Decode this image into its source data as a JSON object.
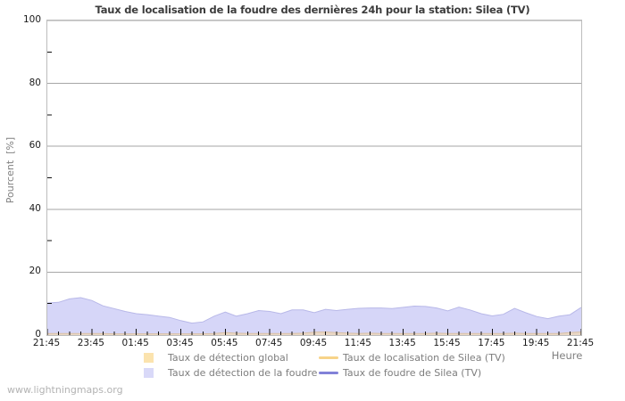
{
  "watermark": "www.lightningmaps.org",
  "chart_data": {
    "type": "area",
    "title": "Taux de localisation de la foudre des dernières 24h pour la station: Silea (TV)",
    "xlabel": "Heure",
    "ylabel": "Pourcent  [%]",
    "ylim": [
      0,
      100
    ],
    "y_major_ticks": [
      0,
      20,
      40,
      60,
      80,
      100
    ],
    "y_minor_ticks": [
      10,
      30,
      50,
      70,
      90
    ],
    "grid": "horizontal-major",
    "x_tick_labels": [
      "21:45",
      "23:45",
      "01:45",
      "03:45",
      "05:45",
      "07:45",
      "09:45",
      "11:45",
      "13:45",
      "15:45",
      "17:45",
      "19:45",
      "21:45"
    ],
    "x_minor_interval_minutes": 30,
    "x_major_interval_minutes": 120,
    "x_total_minutes": 1440,
    "sample_interval_minutes": 30,
    "series": [
      {
        "name": "Taux de détection de la foudre",
        "type": "area",
        "fill": "#d6d6f8",
        "edge": "#b8b8e8",
        "values": [
          10.2,
          10.4,
          11.5,
          11.9,
          11.0,
          9.3,
          8.4,
          7.5,
          6.8,
          6.5,
          6.0,
          5.6,
          4.6,
          3.8,
          4.2,
          6.0,
          7.3,
          6.0,
          6.8,
          7.8,
          7.5,
          6.8,
          8.0,
          8.0,
          7.1,
          8.2,
          7.8,
          8.2,
          8.5,
          8.6,
          8.6,
          8.4,
          8.8,
          9.2,
          9.1,
          8.6,
          7.7,
          8.9,
          8.0,
          6.8,
          6.1,
          6.6,
          8.5,
          7.1,
          5.9,
          5.2,
          6.0,
          6.5,
          8.8
        ]
      },
      {
        "name": "Taux de détection global",
        "type": "area",
        "fill": "#e9d7c5",
        "edge": "#d9c0a5",
        "values": [
          0.5,
          0.5,
          0.5,
          0.5,
          0.5,
          0.5,
          0.4,
          0.4,
          0.4,
          0.4,
          0.4,
          0.4,
          0.4,
          0.4,
          0.4,
          0.5,
          0.8,
          0.6,
          0.5,
          0.5,
          0.5,
          0.5,
          0.5,
          0.6,
          0.9,
          1.0,
          0.8,
          0.6,
          0.5,
          0.6,
          0.5,
          0.5,
          0.5,
          0.5,
          0.5,
          0.6,
          0.5,
          0.5,
          0.5,
          0.5,
          0.5,
          0.5,
          0.6,
          0.5,
          0.5,
          0.5,
          0.5,
          0.8,
          1.0
        ]
      },
      {
        "name": "Taux de localisation de Silea (TV)",
        "type": "line",
        "fill": "#f7d389",
        "edge": "#f7d389",
        "values": []
      },
      {
        "name": "Taux de foudre de Silea (TV)",
        "type": "line",
        "fill": "#8181d8",
        "edge": "#8181d8",
        "values": []
      }
    ]
  },
  "legend": {
    "items": [
      {
        "label": "Taux de détection global",
        "swatch": "square",
        "color": "#fbe3ae"
      },
      {
        "label": "Taux de localisation de Silea (TV)",
        "swatch": "line",
        "color": "#f7d389"
      },
      {
        "label": "Taux de détection de la foudre",
        "swatch": "square",
        "color": "#d9d9f8"
      },
      {
        "label": "Taux de foudre de Silea (TV)",
        "swatch": "line",
        "color": "#8181d8"
      }
    ]
  },
  "colors": {
    "grid": "#a6a6a6",
    "plot_border": "#bdbdbd",
    "tick": "#111111"
  }
}
